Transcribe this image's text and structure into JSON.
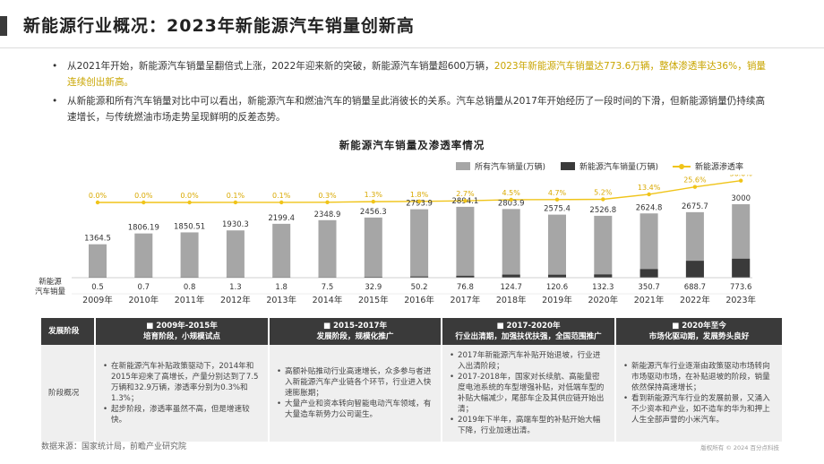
{
  "page_title": "新能源行业概况：2023年新能源汽车销量创新高",
  "bullets": [
    {
      "dot": "•",
      "text_before": "从2021年开始，新能源汽车销量呈翻倍式上涨，2022年迎来新的突破，新能源汽车销量超600万辆，",
      "highlight": "2023年新能源汽车销量达773.6万辆，整体渗透率达36%，销量连续创出新高。"
    },
    {
      "dot": "•",
      "text_before": "从新能源和所有汽车销量对比中可以看出，新能源汽车和燃油汽车的销量呈此消彼长的关系。汽车总销量从2017年开始经历了一段时间的下滑，但新能源销量仍持续高速增长，与传统燃油市场走势呈现鲜明的反差态势。",
      "highlight": ""
    }
  ],
  "chart_data": {
    "type": "bar",
    "title": "新能源汽车销量及渗透率情况",
    "categories": [
      "2009年",
      "2010年",
      "2011年",
      "2012年",
      "2013年",
      "2014年",
      "2015年",
      "2016年",
      "2017年",
      "2018年",
      "2019年",
      "2020年",
      "2021年",
      "2022年",
      "2023年"
    ],
    "row_label_line1": "新能源",
    "row_label_line2": "汽车销量",
    "series": [
      {
        "name": "所有汽车销量(万辆)",
        "color": "#a6a6a6",
        "values": [
          1364.5,
          1806.19,
          1850.51,
          1930.3,
          2199.4,
          2348.9,
          2456.3,
          2793.9,
          2894.1,
          2803.9,
          2575.4,
          2526.8,
          2624.8,
          2675.7,
          3000
        ]
      },
      {
        "name": "新能源汽车销量(万辆)",
        "color": "#3a3a3a",
        "values": [
          0.5,
          0.7,
          0.8,
          1.3,
          1.8,
          7.5,
          32.9,
          50.2,
          76.8,
          124.7,
          120.6,
          132.3,
          350.7,
          688.7,
          773.6
        ]
      },
      {
        "name": "新能源渗透率",
        "color": "#f0c419",
        "values": [
          0.0,
          0.0,
          0.0,
          0.1,
          0.1,
          0.3,
          1.3,
          1.8,
          2.7,
          4.5,
          4.7,
          5.2,
          13.4,
          25.6,
          36.0
        ]
      }
    ],
    "total_labels": [
      "1364.5",
      "1806.19",
      "1850.51",
      "1930.3",
      "2199.4",
      "2348.9",
      "2456.3",
      "2793.9",
      "2894.1",
      "2803.9",
      "2575.4",
      "2526.8",
      "2624.8",
      "2675.7",
      "3000"
    ],
    "nev_labels": [
      "0.5",
      "0.7",
      "0.8",
      "1.3",
      "1.8",
      "7.5",
      "32.9",
      "50.2",
      "76.8",
      "124.7",
      "120.6",
      "132.3",
      "350.7",
      "688.7",
      "773.6"
    ],
    "rate_labels": [
      "0.0%",
      "0.0%",
      "0.0%",
      "0.1%",
      "0.1%",
      "0.3%",
      "1.3%",
      "1.8%",
      "2.7%",
      "4.5%",
      "4.7%",
      "5.2%",
      "13.4%",
      "25.6%",
      "36.0%"
    ],
    "ylim": [
      0,
      3000
    ],
    "rate_ylim": [
      0,
      40
    ],
    "legend_position": "top-right",
    "grid": false
  },
  "table": {
    "header_first": "发展阶段",
    "row_first": "阶段概况",
    "phases": [
      {
        "head_title": "■ 2009年-2015年",
        "head_sub": "培育阶段，小规模试点",
        "items": [
          "在新能源汽车补贴政策驱动下，2014年和2015年迎来了高增长，产量分别达到了7.5万辆和32.9万辆，渗透率分别为0.3%和1.3%；",
          "起步阶段，渗透率虽然不高，但是增速较快。"
        ]
      },
      {
        "head_title": "■ 2015-2017年",
        "head_sub": "发展阶段，规模化推广",
        "items": [
          "高额补贴推动行业高速增长，众多参与者进入新能源汽车产业链各个环节，行业进入快速膨胀期；",
          "大量产业和资本转向智能电动汽车领域，有大量造车新势力公司诞生。"
        ]
      },
      {
        "head_title": "■ 2017-2020年",
        "head_sub": "行业出清期，加强扶优扶强，全国范围推广",
        "items": [
          "2017年新能源汽车补贴开始退坡，行业进入出清阶段；",
          "2017-2018年，国家对长续航、高能量密度电池系统的车型增强补贴，对低端车型的补贴大幅减少，尾部车企及其供应链开始出清；",
          "2019年下半年，高端车型的补贴开始大幅下降，行业加速出清。"
        ]
      },
      {
        "head_title": "■ 2020年至今",
        "head_sub": "市场化驱动期，发展势头良好",
        "items": [
          "新能源汽车行业逐渐由政策驱动市场转向市场驱动市场，在补贴退坡的阶段，销量依然保持高速增长；",
          "看到新能源汽车行业的发展前景，又涌入不少资本和产业，如不造车的华为和押上人生全部声誉的小米汽车。"
        ]
      }
    ]
  },
  "source": "数据来源：国家统计局，前瞻产业研究院",
  "copyright": "版权所有 © 2024 百分点科技"
}
